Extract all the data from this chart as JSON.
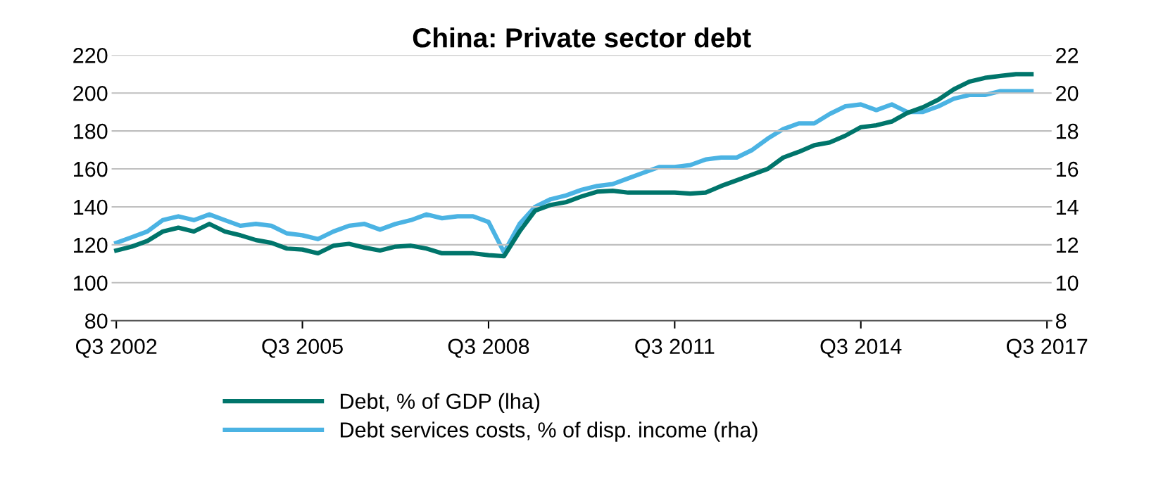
{
  "chart_data": {
    "type": "line",
    "title": "China: Private sector debt",
    "categories": [
      "Q3 2002",
      null,
      null,
      null,
      null,
      null,
      null,
      null,
      null,
      null,
      null,
      null,
      "Q3 2005",
      null,
      null,
      null,
      null,
      null,
      null,
      null,
      null,
      null,
      null,
      null,
      "Q3 2008",
      null,
      null,
      null,
      null,
      null,
      null,
      null,
      null,
      null,
      null,
      null,
      "Q3 2011",
      null,
      null,
      null,
      null,
      null,
      null,
      null,
      null,
      null,
      null,
      null,
      "Q3 2014",
      null,
      null,
      null,
      null,
      null,
      null,
      null,
      null,
      null,
      null,
      null,
      "Q3 2017"
    ],
    "series": [
      {
        "name": "Debt, % of GDP (lha)",
        "color": "#00756b",
        "values": [
          117,
          119,
          122,
          127,
          129,
          127,
          131,
          127,
          125,
          122.5,
          121,
          118,
          117.5,
          115.5,
          119.5,
          120.5,
          118.5,
          117,
          119,
          119.5,
          118,
          115.5,
          115.5,
          115.5,
          114.5,
          114,
          127,
          138,
          141,
          142.5,
          145.5,
          148,
          148.5,
          147.5,
          147.5,
          147.5,
          147.5,
          147,
          147.5,
          151,
          154,
          157,
          160,
          166,
          169,
          172.5,
          174,
          177.5,
          182,
          183,
          185,
          189.5,
          192.5,
          196.5,
          202,
          206,
          208,
          209,
          210,
          210,
          null
        ]
      },
      {
        "name": "Debt services costs, % of disp. income (rha)",
        "color": "#4bb3e3",
        "axis": "y2",
        "values": [
          12.1,
          12.4,
          12.7,
          13.3,
          13.5,
          13.3,
          13.6,
          13.3,
          13.0,
          13.1,
          13.0,
          12.6,
          12.5,
          12.3,
          12.7,
          13.0,
          13.1,
          12.8,
          13.1,
          13.3,
          13.6,
          13.4,
          13.5,
          13.5,
          13.2,
          11.6,
          13.1,
          14.0,
          14.4,
          14.6,
          14.9,
          15.1,
          15.2,
          15.5,
          15.8,
          16.1,
          16.1,
          16.2,
          16.5,
          16.6,
          16.6,
          17.0,
          17.6,
          18.1,
          18.4,
          18.4,
          18.9,
          19.3,
          19.4,
          19.1,
          19.4,
          19.0,
          19.0,
          19.3,
          19.7,
          19.9,
          19.9,
          20.1,
          20.1,
          20.1,
          null
        ]
      }
    ],
    "ylim": [
      80,
      220
    ],
    "yticks": [
      80,
      100,
      120,
      140,
      160,
      180,
      200,
      220
    ],
    "y2lim": [
      8,
      22
    ],
    "y2ticks": [
      8,
      10,
      12,
      14,
      16,
      18,
      20,
      22
    ],
    "grid": "y",
    "legend": "bottom",
    "marker": "none",
    "line_style": "solid"
  }
}
